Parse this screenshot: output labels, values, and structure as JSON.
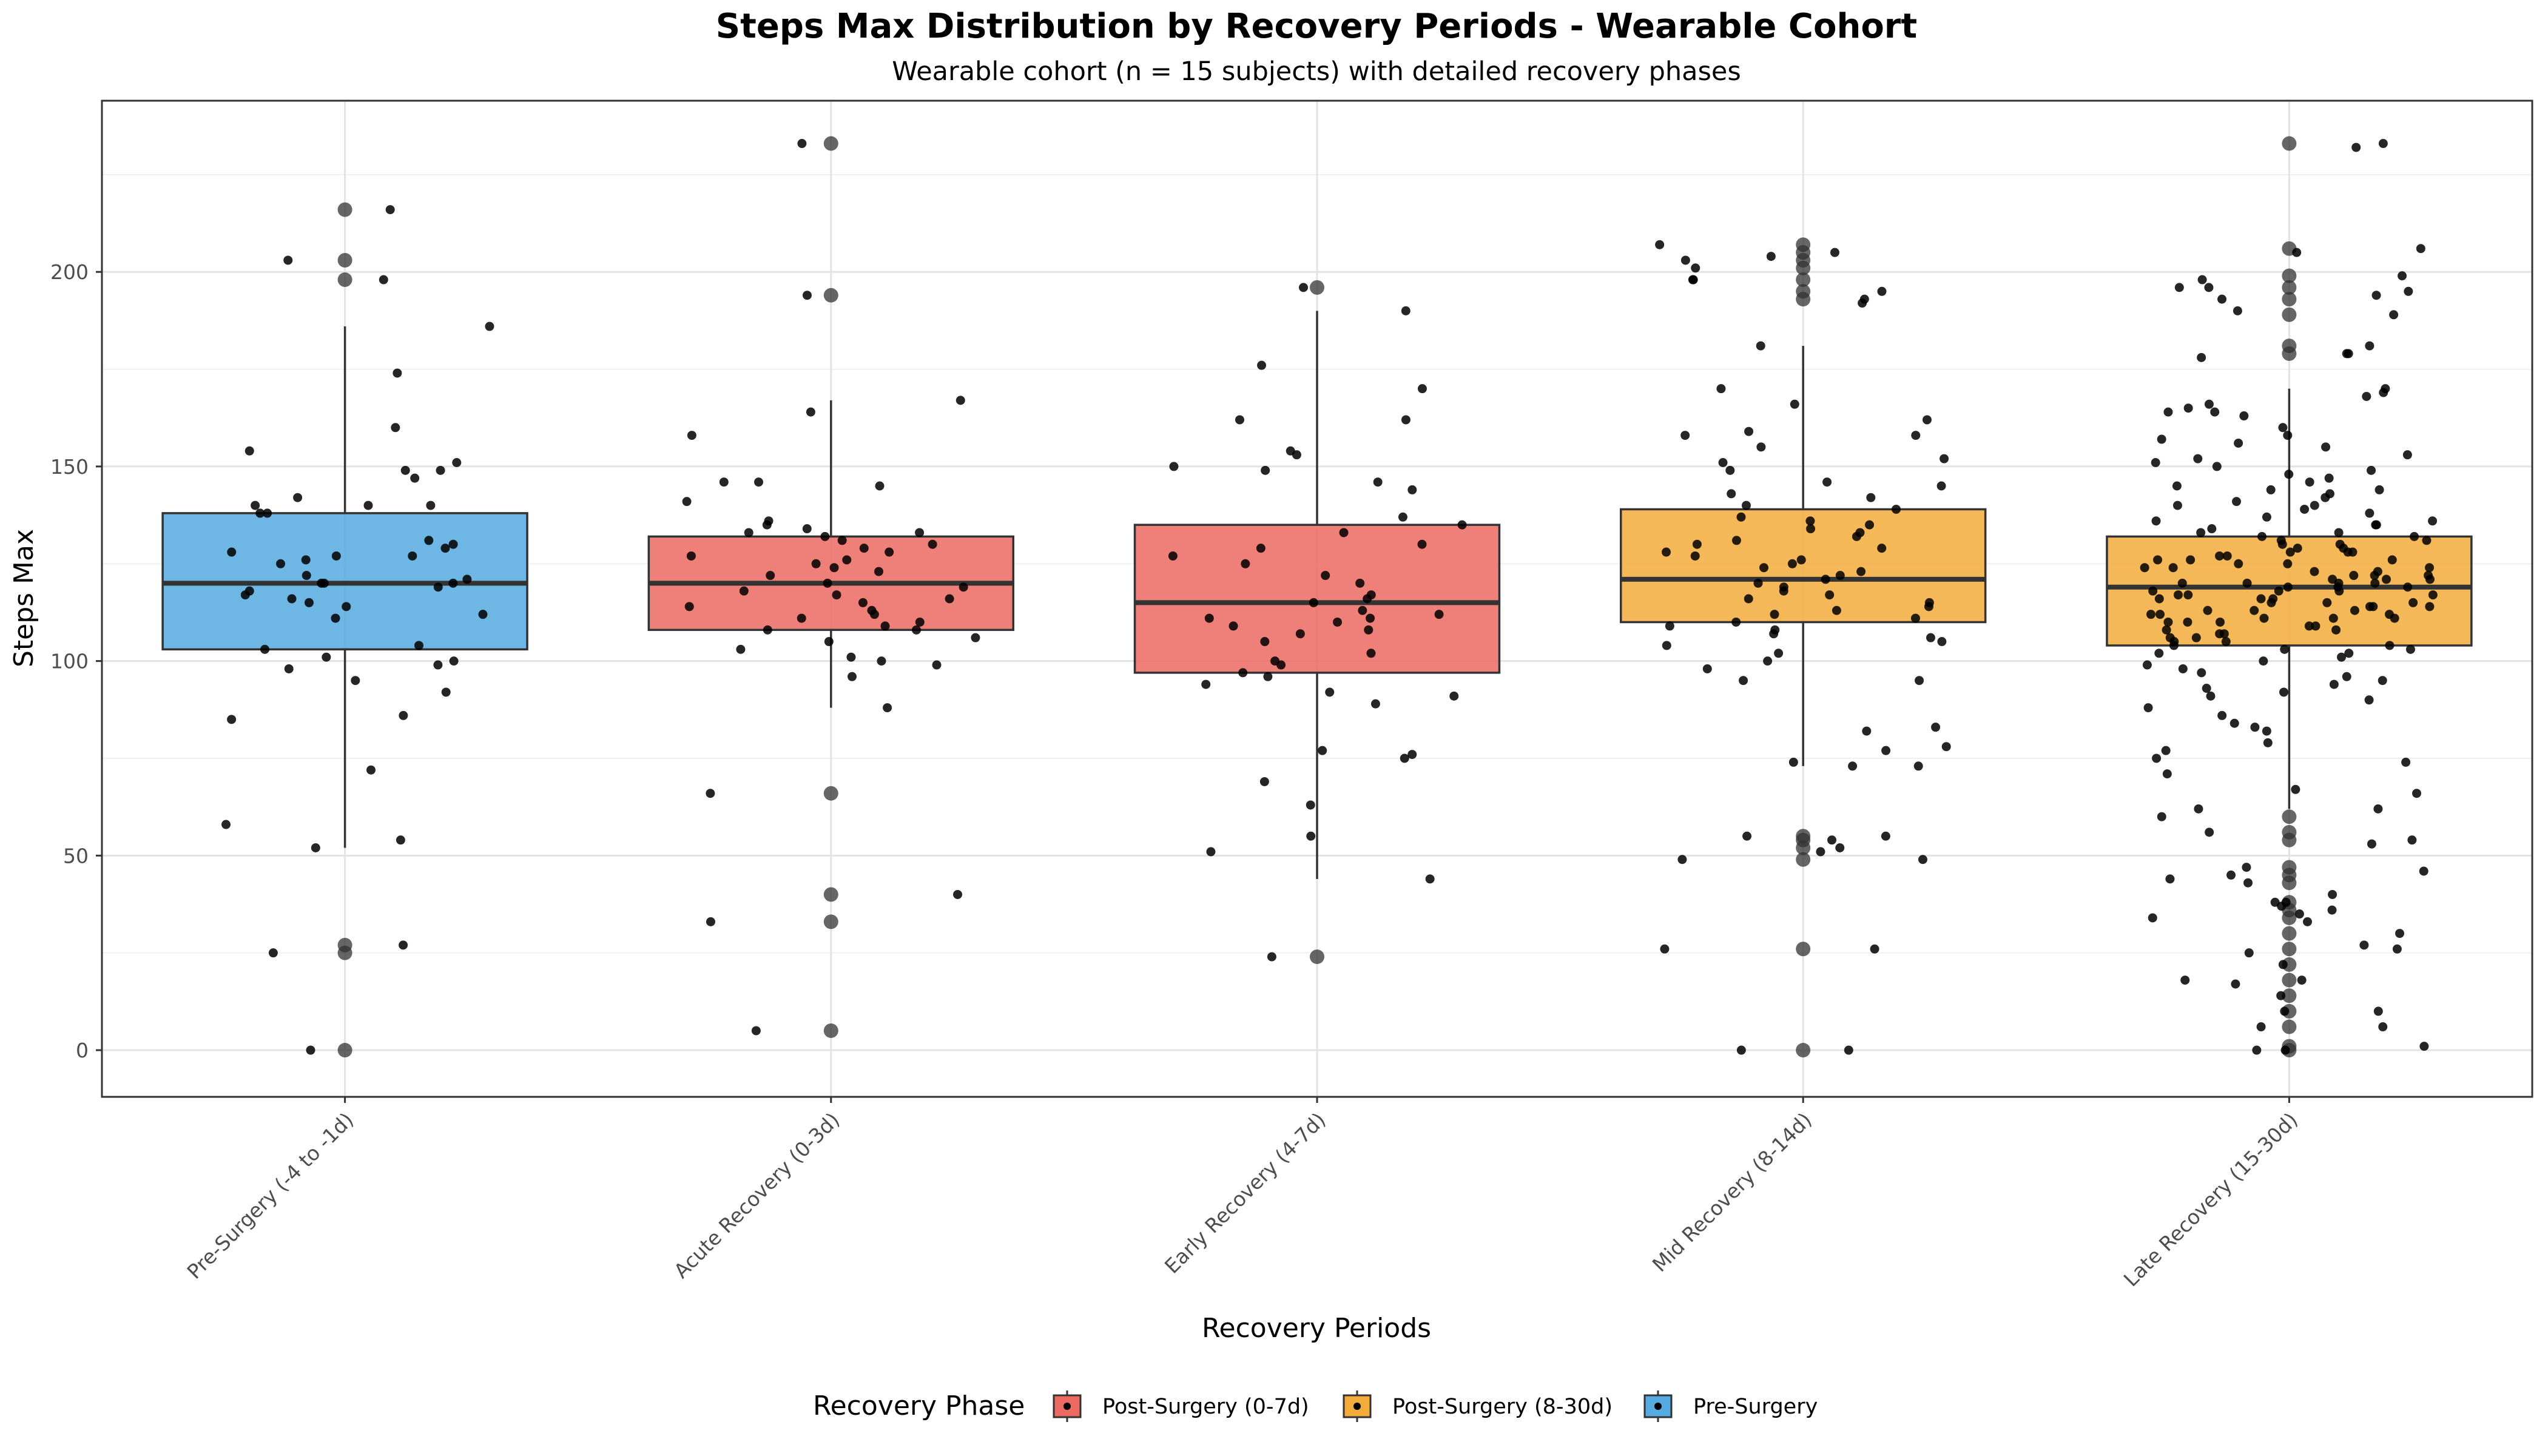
{
  "chart_data": {
    "type": "box",
    "title": "Steps Max Distribution by Recovery Periods - Wearable Cohort",
    "subtitle": "Wearable cohort (n = 15 subjects) with detailed recovery phases",
    "xlabel": "Recovery Periods",
    "ylabel": "Steps Max",
    "ylim": [
      -12,
      244
    ],
    "yticks": [
      0,
      50,
      100,
      150,
      200
    ],
    "grid": true,
    "legend": {
      "title": "Recovery Phase",
      "placement": "bottom",
      "entries": [
        {
          "label": "Post-Surgery (0-7d)",
          "color": "#EC6A61"
        },
        {
          "label": "Post-Surgery (8-30d)",
          "color": "#F3AC3C"
        },
        {
          "label": "Pre-Surgery",
          "color": "#55AAE1"
        }
      ]
    },
    "categories": [
      "Pre-Surgery (-4 to -1d)",
      "Acute Recovery (0-3d)",
      "Early Recovery (4-7d)",
      "Mid Recovery (8-14d)",
      "Late Recovery (15-30d)"
    ],
    "boxes": [
      {
        "category": "Pre-Surgery (-4 to -1d)",
        "phase": "Pre-Surgery",
        "color": "#55AAE1",
        "whisker_low": 52,
        "q1": 103,
        "median": 120,
        "q3": 138,
        "whisker_high": 186,
        "outliers": [
          216,
          203,
          198,
          27,
          25,
          0
        ],
        "points": [
          216,
          203,
          198,
          186,
          174,
          160,
          154,
          151,
          149,
          149,
          147,
          142,
          140,
          140,
          140,
          138,
          138,
          131,
          130,
          129,
          128,
          127,
          127,
          126,
          125,
          122,
          121,
          120,
          120,
          120,
          119,
          118,
          117,
          116,
          115,
          114,
          112,
          111,
          104,
          103,
          101,
          100,
          99,
          98,
          95,
          92,
          86,
          85,
          72,
          58,
          54,
          52,
          27,
          25,
          0
        ]
      },
      {
        "category": "Acute Recovery (0-3d)",
        "phase": "Post-Surgery (0-7d)",
        "color": "#EC6A61",
        "whisker_low": 88,
        "q1": 108,
        "median": 120,
        "q3": 132,
        "whisker_high": 167,
        "outliers": [
          233,
          194,
          66,
          40,
          33,
          5
        ],
        "points": [
          233,
          194,
          167,
          164,
          158,
          146,
          146,
          145,
          141,
          136,
          135,
          134,
          133,
          133,
          132,
          131,
          130,
          129,
          128,
          127,
          126,
          125,
          124,
          123,
          122,
          120,
          119,
          118,
          117,
          116,
          115,
          114,
          113,
          112,
          111,
          110,
          109,
          108,
          108,
          106,
          105,
          103,
          101,
          100,
          99,
          96,
          88,
          66,
          40,
          33,
          5
        ]
      },
      {
        "category": "Early Recovery (4-7d)",
        "phase": "Post-Surgery (0-7d)",
        "color": "#EC6A61",
        "whisker_low": 44,
        "q1": 97,
        "median": 115,
        "q3": 135,
        "whisker_high": 190,
        "outliers": [
          196,
          24
        ],
        "points": [
          196,
          190,
          176,
          170,
          162,
          162,
          154,
          153,
          150,
          149,
          146,
          144,
          137,
          135,
          133,
          130,
          129,
          127,
          125,
          122,
          120,
          117,
          116,
          115,
          113,
          112,
          111,
          111,
          110,
          109,
          108,
          107,
          105,
          102,
          100,
          99,
          97,
          96,
          94,
          92,
          91,
          89,
          77,
          76,
          75,
          69,
          63,
          55,
          51,
          44,
          24
        ]
      },
      {
        "category": "Mid Recovery (8-14d)",
        "phase": "Post-Surgery (8-30d)",
        "color": "#F3AC3C",
        "whisker_low": 73,
        "q1": 110,
        "median": 121,
        "q3": 139,
        "whisker_high": 181,
        "outliers": [
          207,
          205,
          203,
          201,
          198,
          195,
          193,
          55,
          54,
          52,
          49,
          26,
          0
        ],
        "points": [
          207,
          205,
          204,
          203,
          201,
          198,
          198,
          195,
          193,
          192,
          181,
          170,
          166,
          162,
          159,
          158,
          158,
          155,
          152,
          151,
          149,
          146,
          145,
          143,
          142,
          140,
          139,
          137,
          136,
          135,
          134,
          133,
          132,
          131,
          130,
          129,
          128,
          127,
          126,
          125,
          124,
          123,
          122,
          121,
          120,
          119,
          118,
          117,
          116,
          115,
          114,
          113,
          112,
          111,
          110,
          109,
          108,
          107,
          106,
          105,
          104,
          102,
          100,
          98,
          95,
          95,
          83,
          82,
          78,
          77,
          74,
          73,
          73,
          55,
          55,
          54,
          52,
          51,
          49,
          49,
          26,
          26,
          0,
          0
        ]
      },
      {
        "category": "Late Recovery (15-30d)",
        "phase": "Post-Surgery (8-30d)",
        "color": "#F3AC3C",
        "whisker_low": 62,
        "q1": 104,
        "median": 119,
        "q3": 132,
        "whisker_high": 170,
        "outliers": [
          233,
          206,
          199,
          196,
          193,
          189,
          181,
          179,
          60,
          56,
          54,
          47,
          45,
          43,
          38,
          36,
          34,
          30,
          26,
          22,
          18,
          14,
          10,
          6,
          1,
          0
        ],
        "points": [
          233,
          232,
          206,
          205,
          199,
          198,
          196,
          196,
          195,
          194,
          193,
          190,
          189,
          181,
          179,
          179,
          178,
          170,
          169,
          168,
          166,
          165,
          164,
          164,
          163,
          160,
          158,
          157,
          156,
          155,
          153,
          152,
          151,
          150,
          149,
          148,
          147,
          146,
          145,
          144,
          144,
          143,
          142,
          141,
          140,
          140,
          139,
          138,
          137,
          136,
          136,
          135,
          135,
          134,
          133,
          133,
          132,
          132,
          131,
          131,
          130,
          130,
          129,
          129,
          128,
          128,
          128,
          127,
          127,
          126,
          126,
          126,
          125,
          125,
          124,
          124,
          124,
          123,
          123,
          122,
          122,
          122,
          121,
          121,
          121,
          120,
          120,
          120,
          120,
          119,
          119,
          119,
          118,
          118,
          118,
          117,
          117,
          117,
          116,
          116,
          116,
          115,
          115,
          115,
          114,
          114,
          114,
          113,
          113,
          113,
          112,
          112,
          112,
          111,
          111,
          111,
          110,
          110,
          110,
          109,
          109,
          108,
          108,
          107,
          107,
          106,
          106,
          105,
          105,
          104,
          104,
          103,
          103,
          102,
          102,
          101,
          100,
          99,
          98,
          97,
          96,
          95,
          94,
          93,
          92,
          91,
          90,
          88,
          86,
          84,
          83,
          82,
          79,
          77,
          75,
          74,
          71,
          67,
          66,
          62,
          62,
          60,
          56,
          54,
          53,
          47,
          46,
          45,
          44,
          43,
          40,
          38,
          38,
          37,
          36,
          35,
          34,
          33,
          30,
          27,
          26,
          25,
          22,
          18,
          18,
          17,
          14,
          10,
          10,
          6,
          6,
          1,
          0,
          0
        ]
      }
    ]
  }
}
